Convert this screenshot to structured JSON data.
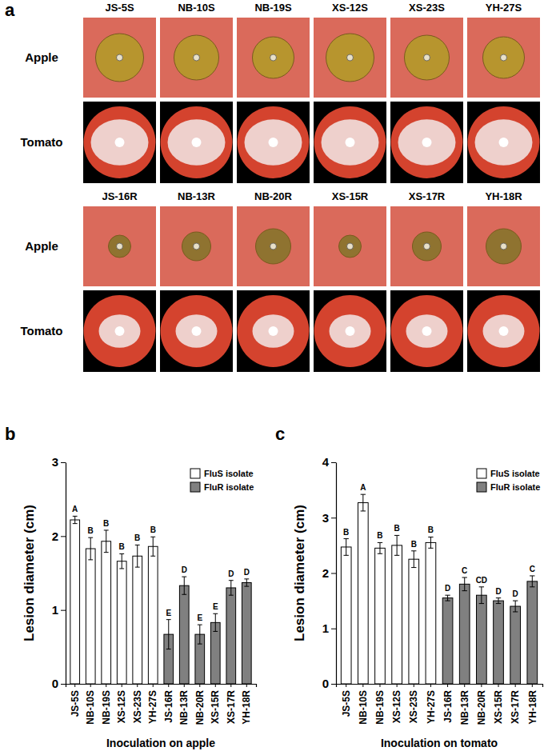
{
  "panel_a": {
    "label": "a",
    "rows": [
      "Apple",
      "Tomato"
    ],
    "groups": [
      [
        "JS-5S",
        "NB-10S",
        "NB-19S",
        "XS-12S",
        "XS-23S",
        "YH-27S"
      ],
      [
        "JS-16R",
        "NB-13R",
        "NB-20R",
        "XS-15R",
        "XS-17R",
        "YH-18R"
      ]
    ]
  },
  "chart_data": [
    {
      "type": "bar",
      "title": "b",
      "x_label": "Inoculation on apple",
      "y_label": "Lesion diameter (cm)",
      "categories": [
        "JS-5S",
        "NB-10S",
        "NB-19S",
        "XS-12S",
        "XS-23S",
        "YH-27S",
        "JS-16R",
        "NB-13R",
        "NB-20R",
        "XS-15R",
        "XS-17R",
        "YH-18R"
      ],
      "series": [
        {
          "name": "FluS isolate",
          "color": "#ffffff",
          "values": [
            2.22,
            1.83,
            1.93,
            1.66,
            1.73,
            1.86,
            null,
            null,
            null,
            null,
            null,
            null
          ],
          "errors": [
            0.05,
            0.15,
            0.15,
            0.1,
            0.15,
            0.13,
            null,
            null,
            null,
            null,
            null,
            null
          ],
          "letters": [
            "A",
            "B",
            "B",
            "B",
            "B",
            "B",
            null,
            null,
            null,
            null,
            null,
            null
          ]
        },
        {
          "name": "FluR isolate",
          "color": "#808080",
          "values": [
            null,
            null,
            null,
            null,
            null,
            null,
            0.67,
            1.33,
            0.67,
            0.83,
            1.3,
            1.37
          ],
          "errors": [
            null,
            null,
            null,
            null,
            null,
            null,
            0.2,
            0.12,
            0.13,
            0.12,
            0.1,
            0.05
          ],
          "letters": [
            null,
            null,
            null,
            null,
            null,
            null,
            "E",
            "D",
            "E",
            "E",
            "D",
            "D"
          ]
        }
      ],
      "ylim": [
        0,
        3
      ],
      "yticks": [
        0,
        1,
        2,
        3
      ],
      "legend": "upper right",
      "grid": false
    },
    {
      "type": "bar",
      "title": "c",
      "x_label": "Inoculation on tomato",
      "y_label": "Lesion diameter (cm)",
      "categories": [
        "JS-5S",
        "NB-10S",
        "NB-19S",
        "XS-12S",
        "XS-23S",
        "YH-27S",
        "JS-16R",
        "NB-13R",
        "NB-20R",
        "XS-15R",
        "XS-17R",
        "YH-18R"
      ],
      "series": [
        {
          "name": "FluS isolate",
          "color": "#ffffff",
          "values": [
            2.47,
            3.27,
            2.45,
            2.5,
            2.25,
            2.55,
            null,
            null,
            null,
            null,
            null,
            null
          ],
          "errors": [
            0.15,
            0.15,
            0.1,
            0.18,
            0.15,
            0.1,
            null,
            null,
            null,
            null,
            null,
            null
          ],
          "letters": [
            "B",
            "A",
            "B",
            "B",
            "B",
            "B",
            null,
            null,
            null,
            null,
            null,
            null
          ]
        },
        {
          "name": "FluR isolate",
          "color": "#808080",
          "values": [
            null,
            null,
            null,
            null,
            null,
            null,
            1.55,
            1.8,
            1.6,
            1.5,
            1.4,
            1.85
          ],
          "errors": [
            null,
            null,
            null,
            null,
            null,
            null,
            0.05,
            0.12,
            0.15,
            0.05,
            0.1,
            0.1
          ],
          "letters": [
            null,
            null,
            null,
            null,
            null,
            null,
            "D",
            "C",
            "CD",
            "D",
            "D",
            "C"
          ]
        }
      ],
      "ylim": [
        0,
        4
      ],
      "yticks": [
        0,
        1,
        2,
        3,
        4
      ],
      "legend": "upper right",
      "grid": false
    }
  ]
}
